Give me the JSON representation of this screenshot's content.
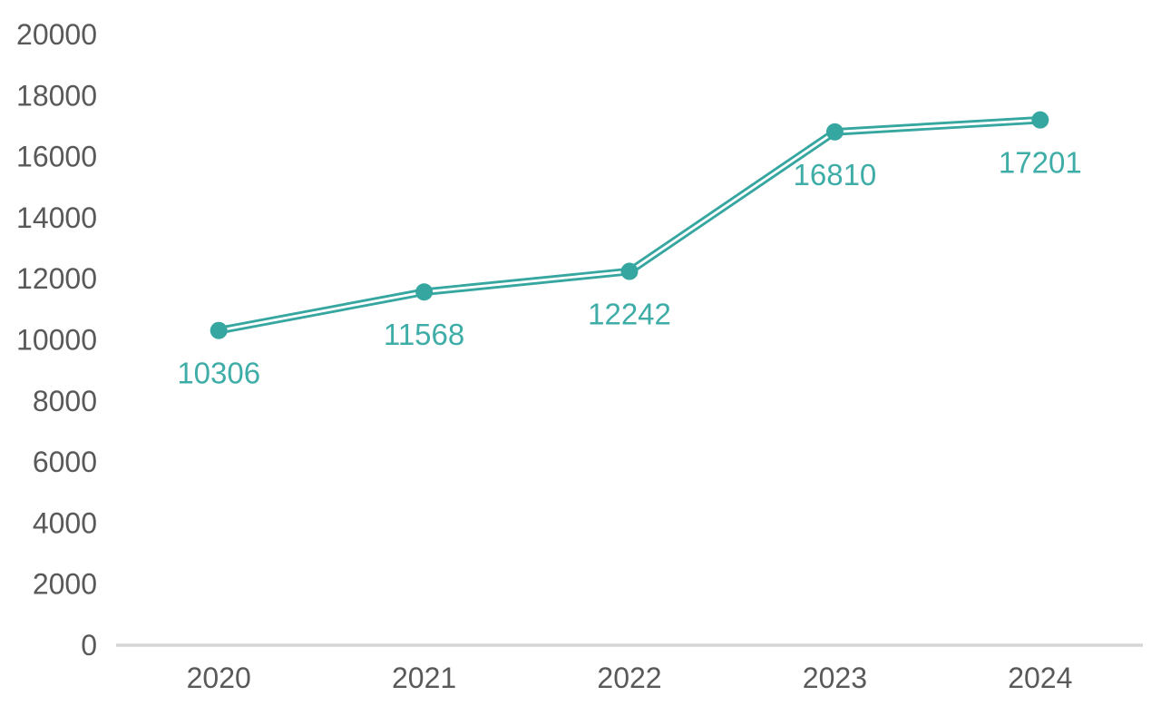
{
  "chart_data": {
    "type": "line",
    "title": "",
    "xlabel": "",
    "ylabel": "",
    "categories": [
      "2020",
      "2021",
      "2022",
      "2023",
      "2024"
    ],
    "series": [
      {
        "name": "series-1",
        "values": [
          10306,
          11568,
          12242,
          16810,
          17201
        ]
      }
    ],
    "values": [
      10306,
      11568,
      12242,
      16810,
      17201
    ],
    "data_labels": [
      "10306",
      "11568",
      "12242",
      "16810",
      "17201"
    ],
    "ylim": [
      0,
      20000
    ],
    "y_tick_step": 2000,
    "y_ticks": [
      0,
      2000,
      4000,
      6000,
      8000,
      10000,
      12000,
      14000,
      16000,
      18000,
      20000
    ],
    "grid": false,
    "legend": false,
    "marker_style": "filled-circle",
    "line_style": "double-stroke",
    "colors": {
      "line": "#35A6A0",
      "line_inner": "#FFFFFF",
      "marker": "#35A6A0",
      "data_label": "#3FADA7",
      "axis_text": "#595959",
      "axis_line": "#D6D6D6",
      "background": "#FFFFFF"
    }
  }
}
